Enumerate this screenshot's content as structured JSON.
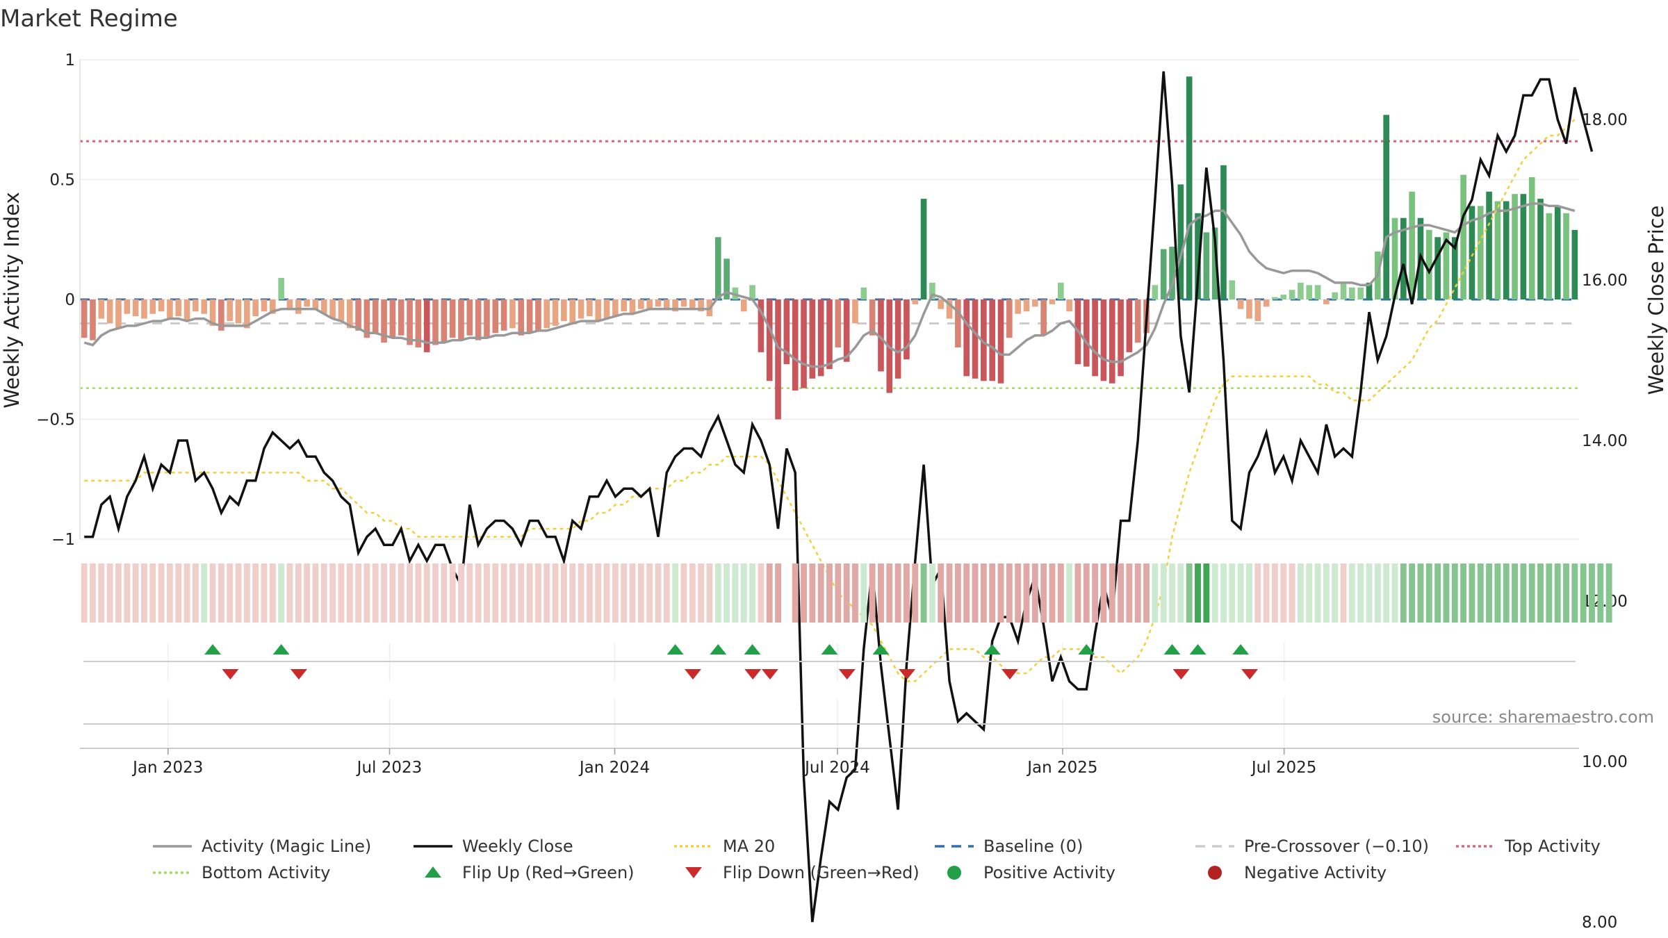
{
  "title": "Market Regime",
  "source": "source: sharemaestro.com",
  "colors": {
    "activity_line": "#999999",
    "weekly_close": "#111111",
    "ma20": "#f2d03b",
    "baseline": "#2f6fae",
    "pre_crossover": "#cccccc",
    "top_activity": "#d9657f",
    "bottom_activity": "#a9d86e",
    "flip_up": "#22a048",
    "flip_down": "#cc2a2a",
    "positive_activity": "#22a048",
    "negative_activity": "#b22222"
  },
  "chart_data": {
    "type": "bar",
    "title": "Market Regime",
    "ylabel": "Weekly Activity Index",
    "y2label": "Weekly Close Price",
    "ylim": [
      -1,
      1
    ],
    "y2lim": [
      8.0,
      18.0
    ],
    "y_ticks": [
      "1",
      "0.5",
      "0",
      "−0.5",
      "−1"
    ],
    "y2_ticks": [
      "18.00",
      "16.00",
      "14.00",
      "12.00",
      "10.00",
      "8.00"
    ],
    "x_ticks": [
      "Jan 2023",
      "Jul 2023",
      "Jan 2024",
      "Jul 2024",
      "Jan 2025",
      "Jul 2025"
    ],
    "x_start": "2022-10-21",
    "top_activity": 0.66,
    "bottom_activity": -0.37,
    "baseline": 0,
    "pre_crossover": -0.1,
    "activity": [
      -0.16,
      -0.17,
      -0.08,
      -0.1,
      -0.12,
      -0.06,
      -0.07,
      -0.08,
      -0.06,
      -0.05,
      -0.08,
      -0.07,
      -0.09,
      -0.05,
      -0.06,
      -0.11,
      -0.13,
      -0.09,
      -0.1,
      -0.12,
      -0.07,
      -0.05,
      -0.06,
      0.09,
      -0.04,
      -0.06,
      -0.03,
      -0.04,
      -0.06,
      -0.08,
      -0.09,
      -0.12,
      -0.13,
      -0.16,
      -0.14,
      -0.18,
      -0.16,
      -0.15,
      -0.19,
      -0.2,
      -0.22,
      -0.19,
      -0.18,
      -0.16,
      -0.17,
      -0.15,
      -0.17,
      -0.16,
      -0.14,
      -0.13,
      -0.12,
      -0.15,
      -0.14,
      -0.13,
      -0.12,
      -0.11,
      -0.09,
      -0.1,
      -0.08,
      -0.07,
      -0.09,
      -0.08,
      -0.07,
      -0.05,
      -0.06,
      -0.04,
      -0.04,
      -0.03,
      -0.04,
      -0.05,
      -0.03,
      -0.04,
      -0.05,
      -0.07,
      0.26,
      0.17,
      0.05,
      -0.05,
      0.06,
      -0.22,
      -0.34,
      -0.5,
      -0.27,
      -0.38,
      -0.37,
      -0.33,
      -0.32,
      -0.29,
      -0.2,
      -0.26,
      -0.1,
      0.05,
      -0.15,
      -0.3,
      -0.39,
      -0.33,
      -0.25,
      -0.02,
      0.42,
      0.07,
      -0.04,
      -0.08,
      -0.2,
      -0.32,
      -0.33,
      -0.34,
      -0.34,
      -0.35,
      -0.16,
      -0.06,
      -0.05,
      -0.03,
      -0.15,
      -0.02,
      0.07,
      -0.05,
      -0.27,
      -0.28,
      -0.32,
      -0.34,
      -0.35,
      -0.32,
      -0.22,
      -0.18,
      -0.14,
      0.06,
      0.21,
      0.22,
      0.48,
      0.93,
      0.36,
      0.28,
      0.3,
      0.56,
      0.08,
      -0.04,
      -0.08,
      -0.09,
      -0.03,
      0.01,
      0.02,
      0.04,
      0.07,
      0.06,
      0.06,
      -0.02,
      0.03,
      0.07,
      0.05,
      0.05,
      0.07,
      0.2,
      0.77,
      0.34,
      0.34,
      0.45,
      0.34,
      0.29,
      0.26,
      0.28,
      0.26,
      0.52,
      0.39,
      0.39,
      0.45,
      0.41,
      0.41,
      0.44,
      0.44,
      0.51,
      0.42,
      0.36,
      0.39,
      0.36,
      0.29
    ],
    "activity_line": [
      -0.18,
      -0.19,
      -0.15,
      -0.13,
      -0.12,
      -0.11,
      -0.11,
      -0.1,
      -0.09,
      -0.09,
      -0.08,
      -0.08,
      -0.09,
      -0.08,
      -0.08,
      -0.1,
      -0.11,
      -0.11,
      -0.11,
      -0.11,
      -0.09,
      -0.07,
      -0.05,
      -0.04,
      -0.04,
      -0.04,
      -0.04,
      -0.04,
      -0.06,
      -0.08,
      -0.09,
      -0.11,
      -0.12,
      -0.14,
      -0.14,
      -0.15,
      -0.16,
      -0.16,
      -0.17,
      -0.17,
      -0.18,
      -0.18,
      -0.18,
      -0.17,
      -0.17,
      -0.16,
      -0.16,
      -0.16,
      -0.15,
      -0.15,
      -0.14,
      -0.14,
      -0.14,
      -0.13,
      -0.13,
      -0.12,
      -0.11,
      -0.1,
      -0.09,
      -0.09,
      -0.09,
      -0.08,
      -0.07,
      -0.06,
      -0.06,
      -0.05,
      -0.04,
      -0.04,
      -0.04,
      -0.04,
      -0.04,
      -0.04,
      -0.04,
      -0.04,
      0.01,
      0.03,
      0.02,
      0.01,
      0.0,
      -0.05,
      -0.12,
      -0.2,
      -0.22,
      -0.25,
      -0.27,
      -0.28,
      -0.28,
      -0.27,
      -0.25,
      -0.24,
      -0.2,
      -0.15,
      -0.13,
      -0.16,
      -0.2,
      -0.22,
      -0.2,
      -0.15,
      -0.06,
      0.02,
      0.01,
      -0.02,
      -0.05,
      -0.1,
      -0.14,
      -0.18,
      -0.2,
      -0.23,
      -0.23,
      -0.2,
      -0.17,
      -0.15,
      -0.15,
      -0.13,
      -0.1,
      -0.09,
      -0.13,
      -0.18,
      -0.22,
      -0.25,
      -0.26,
      -0.26,
      -0.24,
      -0.22,
      -0.19,
      -0.12,
      -0.02,
      0.06,
      0.18,
      0.31,
      0.34,
      0.35,
      0.37,
      0.37,
      0.32,
      0.27,
      0.2,
      0.16,
      0.13,
      0.12,
      0.11,
      0.12,
      0.12,
      0.12,
      0.11,
      0.09,
      0.07,
      0.07,
      0.07,
      0.06,
      0.06,
      0.1,
      0.26,
      0.28,
      0.29,
      0.3,
      0.31,
      0.31,
      0.3,
      0.29,
      0.28,
      0.31,
      0.33,
      0.34,
      0.36,
      0.37,
      0.37,
      0.38,
      0.39,
      0.4,
      0.4,
      0.39,
      0.39,
      0.38,
      0.37
    ],
    "weekly_close": [
      12.8,
      12.8,
      13.2,
      13.3,
      12.9,
      13.3,
      13.5,
      13.8,
      13.4,
      13.7,
      13.6,
      14.0,
      14.0,
      13.5,
      13.6,
      13.4,
      13.1,
      13.3,
      13.2,
      13.5,
      13.5,
      13.9,
      14.1,
      14.0,
      13.9,
      14.0,
      13.8,
      13.8,
      13.6,
      13.5,
      13.3,
      13.2,
      12.6,
      12.8,
      12.9,
      12.7,
      12.7,
      12.9,
      12.5,
      12.7,
      12.5,
      12.7,
      12.7,
      12.4,
      12.2,
      13.2,
      12.7,
      12.9,
      13.0,
      13.0,
      12.9,
      12.7,
      13.0,
      13.0,
      12.8,
      12.8,
      12.5,
      13.0,
      12.9,
      13.3,
      13.3,
      13.5,
      13.3,
      13.4,
      13.4,
      13.3,
      13.4,
      12.8,
      13.6,
      13.8,
      13.9,
      13.9,
      13.8,
      14.1,
      14.3,
      14.0,
      13.7,
      13.6,
      14.2,
      14.0,
      13.7,
      12.9,
      13.9,
      13.6,
      9.8,
      8.0,
      8.8,
      9.5,
      9.4,
      9.8,
      9.9,
      11.4,
      12.4,
      11.2,
      10.3,
      9.4,
      11.2,
      12.5,
      13.7,
      12.2,
      12.4,
      11.0,
      10.5,
      10.6,
      10.5,
      10.4,
      11.5,
      11.8,
      11.8,
      11.5,
      12.0,
      12.3,
      11.7,
      11.0,
      11.3,
      11.0,
      10.9,
      10.9,
      11.6,
      12.2,
      11.8,
      13.0,
      13.0,
      14.0,
      15.5,
      17.0,
      18.6,
      17.2,
      15.3,
      14.6,
      16.0,
      17.4,
      16.5,
      15.0,
      13.0,
      12.9,
      13.6,
      13.8,
      14.1,
      13.6,
      13.8,
      13.5,
      14.0,
      13.8,
      13.6,
      14.2,
      13.8,
      13.9,
      13.8,
      14.6,
      15.6,
      15.0,
      15.3,
      15.8,
      16.2,
      15.7,
      16.3,
      16.1,
      16.3,
      16.5,
      16.4,
      16.8,
      17.0,
      17.5,
      17.3,
      17.8,
      17.6,
      17.8,
      18.3,
      18.3,
      18.5,
      18.5,
      18.0,
      17.7,
      18.4,
      18.0,
      17.6
    ],
    "ma20": [
      13.5,
      13.5,
      13.5,
      13.5,
      13.5,
      13.5,
      13.5,
      13.6,
      13.6,
      13.6,
      13.6,
      13.6,
      13.6,
      13.6,
      13.6,
      13.6,
      13.6,
      13.6,
      13.6,
      13.6,
      13.6,
      13.6,
      13.6,
      13.6,
      13.6,
      13.6,
      13.5,
      13.5,
      13.5,
      13.4,
      13.4,
      13.3,
      13.2,
      13.1,
      13.1,
      13.0,
      13.0,
      12.9,
      12.9,
      12.8,
      12.8,
      12.8,
      12.8,
      12.8,
      12.8,
      12.8,
      12.8,
      12.8,
      12.8,
      12.8,
      12.8,
      12.8,
      12.9,
      12.9,
      12.9,
      12.9,
      12.9,
      12.9,
      13.0,
      13.0,
      13.1,
      13.1,
      13.2,
      13.2,
      13.3,
      13.3,
      13.4,
      13.4,
      13.4,
      13.5,
      13.5,
      13.6,
      13.6,
      13.7,
      13.7,
      13.8,
      13.8,
      13.8,
      13.8,
      13.8,
      13.7,
      13.5,
      13.3,
      13.1,
      12.9,
      12.7,
      12.5,
      12.3,
      12.1,
      12.0,
      11.9,
      11.8,
      11.7,
      11.5,
      11.3,
      11.1,
      11.0,
      11.0,
      11.1,
      11.2,
      11.3,
      11.4,
      11.4,
      11.4,
      11.4,
      11.3,
      11.3,
      11.2,
      11.1,
      11.1,
      11.1,
      11.2,
      11.3,
      11.3,
      11.4,
      11.4,
      11.4,
      11.4,
      11.3,
      11.3,
      11.2,
      11.1,
      11.2,
      11.3,
      11.5,
      11.8,
      12.2,
      12.8,
      13.2,
      13.6,
      13.9,
      14.2,
      14.5,
      14.7,
      14.8,
      14.8,
      14.8,
      14.8,
      14.8,
      14.8,
      14.8,
      14.8,
      14.8,
      14.8,
      14.7,
      14.7,
      14.6,
      14.6,
      14.5,
      14.5,
      14.5,
      14.6,
      14.7,
      14.8,
      14.9,
      15.0,
      15.2,
      15.4,
      15.5,
      15.7,
      15.9,
      16.1,
      16.3,
      16.5,
      16.7,
      16.9,
      17.1,
      17.3,
      17.5,
      17.6,
      17.7,
      17.8,
      17.8,
      17.9,
      18.0
    ],
    "regime_strip": [
      "r",
      "r",
      "r",
      "r",
      "r",
      "r",
      "r",
      "r",
      "r",
      "r",
      "r",
      "r",
      "r",
      "r",
      "g",
      "r",
      "r",
      "r",
      "r",
      "r",
      "r",
      "r",
      "r",
      "g",
      "r",
      "r",
      "r",
      "r",
      "r",
      "r",
      "r",
      "r",
      "r",
      "r",
      "r",
      "r",
      "r",
      "r",
      "r",
      "r",
      "r",
      "r",
      "r",
      "r",
      "r",
      "r",
      "r",
      "r",
      "r",
      "r",
      "r",
      "r",
      "r",
      "r",
      "r",
      "r",
      "r",
      "r",
      "r",
      "r",
      "r",
      "r",
      "r",
      "r",
      "r",
      "r",
      "r",
      "r",
      "r",
      "g",
      "r",
      "r",
      "r",
      "r",
      "g",
      "g",
      "g",
      "g",
      "g",
      "r",
      "R",
      "R",
      "n",
      "R",
      "R",
      "R",
      "R",
      "R",
      "R",
      "R",
      "R",
      "g",
      "R",
      "R",
      "R",
      "R",
      "R",
      "R",
      "G",
      "g",
      "R",
      "R",
      "R",
      "R",
      "R",
      "R",
      "R",
      "R",
      "R",
      "R",
      "R",
      "R",
      "R",
      "R",
      "R",
      "g",
      "R",
      "R",
      "R",
      "R",
      "R",
      "R",
      "R",
      "R",
      "R",
      "g",
      "g",
      "g",
      "g",
      "G",
      "G",
      "G",
      "g",
      "g",
      "g",
      "g",
      "g",
      "r",
      "r",
      "r",
      "r",
      "r",
      "g",
      "g",
      "g",
      "g",
      "g",
      "r",
      "g",
      "g",
      "g",
      "g",
      "g",
      "g",
      "G",
      "G",
      "G",
      "G",
      "G",
      "G",
      "G",
      "G",
      "G",
      "G",
      "G",
      "G",
      "G",
      "G",
      "G",
      "G",
      "G",
      "G",
      "G",
      "G",
      "G",
      "G",
      "G",
      "G",
      "G"
    ],
    "flip_up": [
      15,
      23,
      69,
      74,
      78,
      87,
      93,
      106,
      117,
      127,
      130,
      135
    ],
    "flip_down": [
      16,
      24,
      70,
      77,
      79,
      88,
      95,
      107,
      127,
      135
    ],
    "legend": [
      "Activity (Magic Line)",
      "Weekly Close",
      "MA 20",
      "Baseline (0)",
      "Pre-Crossover (−0.10)",
      "Top Activity",
      "Bottom Activity",
      "Flip Up (Red→Green)",
      "Flip Down (Green→Red)",
      "Positive Activity",
      "Negative Activity"
    ]
  }
}
